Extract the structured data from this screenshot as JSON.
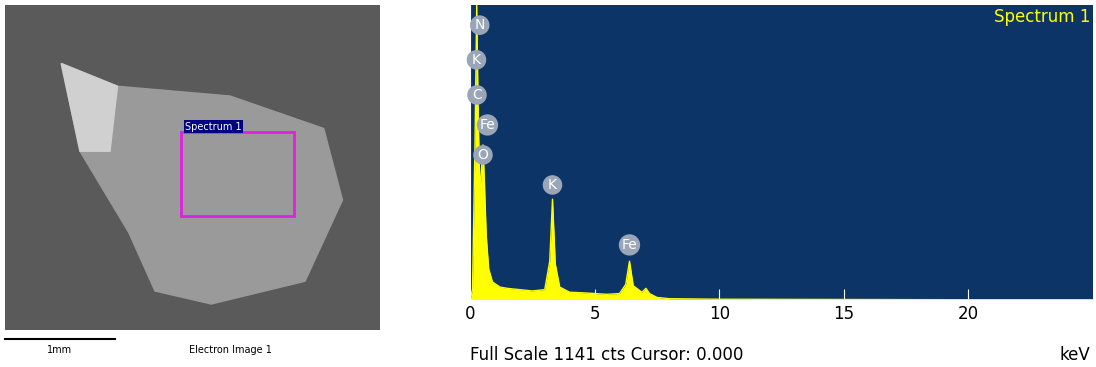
{
  "electron_image": {
    "caption": "Electron Image 1",
    "scale_bar": "1mm",
    "region_label": "Spectrum 1"
  },
  "chart_data": {
    "type": "area",
    "title": "Spectrum 1",
    "x": [
      0.0,
      0.1,
      0.2,
      0.27,
      0.33,
      0.4,
      0.46,
      0.52,
      0.58,
      0.65,
      0.75,
      0.9,
      1.2,
      1.5,
      2.0,
      2.5,
      3.0,
      3.2,
      3.31,
      3.42,
      3.6,
      4.0,
      4.5,
      5.0,
      5.5,
      6.0,
      6.25,
      6.4,
      6.55,
      6.9,
      7.06,
      7.2,
      7.5,
      8.0,
      10.0,
      15.0,
      20.0,
      25.0
    ],
    "values": [
      0,
      40,
      600,
      1141,
      700,
      420,
      500,
      600,
      450,
      250,
      120,
      70,
      50,
      45,
      40,
      35,
      40,
      150,
      390,
      140,
      50,
      30,
      28,
      25,
      22,
      25,
      60,
      150,
      55,
      30,
      45,
      25,
      10,
      5,
      3,
      2,
      1,
      1
    ],
    "color": "#ffff00",
    "xlim": [
      0,
      25
    ],
    "ylim": [
      0,
      1141
    ],
    "xticks": [
      0,
      5,
      10,
      15,
      20
    ],
    "tick_labels": "x",
    "xlabel": "keV",
    "annotations": [
      {
        "text": "N",
        "x": 0.39,
        "y": 1063
      },
      {
        "text": "K",
        "x": 0.26,
        "y": 929
      },
      {
        "text": "C",
        "x": 0.28,
        "y": 793
      },
      {
        "text": "Fe",
        "x": 0.7,
        "y": 677
      },
      {
        "text": "O",
        "x": 0.52,
        "y": 561
      },
      {
        "text": "K",
        "x": 3.31,
        "y": 445
      },
      {
        "text": "Fe",
        "x": 6.4,
        "y": 213
      }
    ],
    "footer": "Full Scale 1141 cts Cursor: 0.000"
  }
}
